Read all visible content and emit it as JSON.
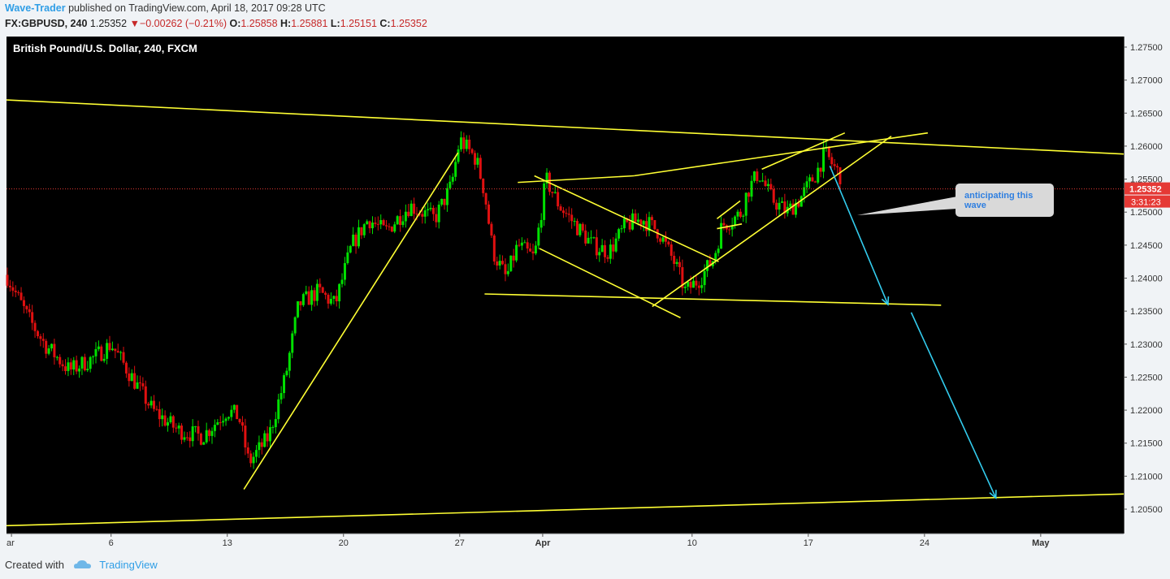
{
  "header": {
    "author": "Wave-Trader",
    "published_text": "published on TradingView.com, April 18, 2017 09:28 UTC"
  },
  "ohlc": {
    "symbol": "FX:GBPUSD, 240",
    "last": "1.25352",
    "change": "▼−0.00262 (−0.21%)",
    "open_label": "O:",
    "open": "1.25858",
    "high_label": "H:",
    "high": "1.25881",
    "low_label": "L:",
    "low": "1.25151",
    "close_label": "C:",
    "close": "1.25352"
  },
  "footer": {
    "created_with": "Created with",
    "brand": "TradingView"
  },
  "colors": {
    "up": "#00e000",
    "down": "#e01010",
    "trendline": "#ffff33",
    "arrow": "#33ccee",
    "price_tag": "#e53935"
  },
  "chart_data": {
    "type": "candlestick",
    "title": "British Pound/U.S. Dollar, 240, FXCM",
    "ylim": [
      1.2025,
      1.2765
    ],
    "yticks": [
      "1.27500",
      "1.27000",
      "1.26500",
      "1.26000",
      "1.25500",
      "1.25000",
      "1.24500",
      "1.24000",
      "1.23500",
      "1.23000",
      "1.22500",
      "1.22000",
      "1.21500",
      "1.21000",
      "1.20500"
    ],
    "ytick_values": [
      1.275,
      1.27,
      1.265,
      1.26,
      1.255,
      1.25,
      1.245,
      1.24,
      1.235,
      1.23,
      1.225,
      1.22,
      1.215,
      1.21,
      1.205
    ],
    "xticks": [
      "ar",
      "6",
      "13",
      "20",
      "27",
      "Apr",
      "10",
      "17",
      "24",
      "May"
    ],
    "xtick_days": [
      0,
      6,
      13,
      20,
      27,
      32,
      41,
      48,
      55,
      62
    ],
    "xlim_days": [
      -0.3,
      67
    ],
    "last_price": "1.25352",
    "last_price_value": 1.25352,
    "countdown": "3:31:23",
    "annotation": "anticipating this wave",
    "price_path": [
      [
        -0.3,
        1.2405
      ],
      [
        1.0,
        1.234
      ],
      [
        2.0,
        1.23
      ],
      [
        3.5,
        1.226
      ],
      [
        5.0,
        1.228
      ],
      [
        6.0,
        1.23
      ],
      [
        7.5,
        1.224
      ],
      [
        8.5,
        1.22
      ],
      [
        10.0,
        1.217
      ],
      [
        11.5,
        1.216
      ],
      [
        13.0,
        1.22
      ],
      [
        13.7,
        1.219
      ],
      [
        14.3,
        1.212
      ],
      [
        15.5,
        1.216
      ],
      [
        16.5,
        1.225
      ],
      [
        17.3,
        1.236
      ],
      [
        18.5,
        1.238
      ],
      [
        19.5,
        1.236
      ],
      [
        20.5,
        1.245
      ],
      [
        21.5,
        1.249
      ],
      [
        22.5,
        1.247
      ],
      [
        24.0,
        1.251
      ],
      [
        25.5,
        1.249
      ],
      [
        26.5,
        1.254
      ],
      [
        27.0,
        1.261
      ],
      [
        28.0,
        1.258
      ],
      [
        28.5,
        1.253
      ],
      [
        29.0,
        1.244
      ],
      [
        29.8,
        1.24
      ],
      [
        30.5,
        1.245
      ],
      [
        31.5,
        1.243
      ],
      [
        32.2,
        1.255
      ],
      [
        33.0,
        1.251
      ],
      [
        34.0,
        1.248
      ],
      [
        35.0,
        1.245
      ],
      [
        36.0,
        1.244
      ],
      [
        37.0,
        1.248
      ],
      [
        38.0,
        1.249
      ],
      [
        39.0,
        1.247
      ],
      [
        40.0,
        1.242
      ],
      [
        40.6,
        1.238
      ],
      [
        41.5,
        1.24
      ],
      [
        42.3,
        1.243
      ],
      [
        42.8,
        1.248
      ],
      [
        43.5,
        1.249
      ],
      [
        44.0,
        1.25
      ],
      [
        44.3,
        1.253
      ],
      [
        45.0,
        1.256
      ],
      [
        45.8,
        1.252
      ],
      [
        46.7,
        1.25
      ],
      [
        47.5,
        1.252
      ],
      [
        48.5,
        1.256
      ],
      [
        49.0,
        1.259
      ],
      [
        49.5,
        1.257
      ],
      [
        50.0,
        1.2553
      ]
    ],
    "trendlines": [
      {
        "name": "upper-channel",
        "x": [
          -0.3,
          67
        ],
        "y": [
          1.267,
          1.2588
        ]
      },
      {
        "name": "lower-channel",
        "x": [
          -0.3,
          67
        ],
        "y": [
          1.2025,
          1.2073
        ]
      },
      {
        "name": "rally-support",
        "x": [
          14.0,
          26.9
        ],
        "y": [
          1.208,
          1.259
        ]
      },
      {
        "name": "range-top",
        "x": [
          30.5,
          37.5
        ],
        "y": [
          1.2545,
          1.2555
        ]
      },
      {
        "name": "range-top-2",
        "x": [
          37.5,
          55.2
        ],
        "y": [
          1.2555,
          1.262
        ]
      },
      {
        "name": "flag-top",
        "x": [
          31.5,
          42.6
        ],
        "y": [
          1.2555,
          1.2425
        ]
      },
      {
        "name": "flag-bottom",
        "x": [
          31.8,
          40.3
        ],
        "y": [
          1.2445,
          1.234
        ]
      },
      {
        "name": "wedge-support",
        "x": [
          38.6,
          53.0
        ],
        "y": [
          1.2357,
          1.2615
        ]
      },
      {
        "name": "mini-flag-1",
        "x": [
          42.5,
          43.9
        ],
        "y": [
          1.249,
          1.2517
        ]
      },
      {
        "name": "mini-flag-2",
        "x": [
          42.5,
          44.0
        ],
        "y": [
          1.2475,
          1.2482
        ]
      },
      {
        "name": "wedge-top",
        "x": [
          45.2,
          50.2
        ],
        "y": [
          1.2565,
          1.262
        ]
      },
      {
        "name": "neckline",
        "x": [
          28.5,
          56.0
        ],
        "y": [
          1.2376,
          1.2359
        ]
      }
    ],
    "arrows": [
      {
        "name": "projection-arrow-1",
        "x": [
          49.3,
          52.8
        ],
        "y": [
          1.257,
          1.236
        ]
      },
      {
        "name": "projection-arrow-2",
        "x": [
          54.2,
          59.3
        ],
        "y": [
          1.2348,
          1.2067
        ]
      }
    ]
  }
}
